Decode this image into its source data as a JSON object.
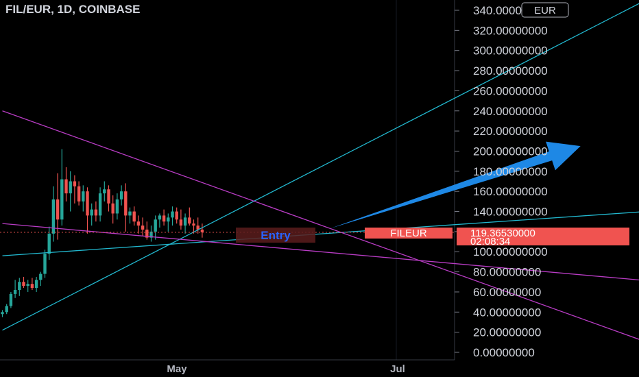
{
  "header": {
    "title": "FIL/EUR, 1D, COINBASE"
  },
  "currency_badge": "EUR",
  "price_label": {
    "symbol": "FILEUR",
    "price": "119.36530000",
    "countdown": "02:08:34"
  },
  "entry_label": "Entry",
  "colors": {
    "background": "#000000",
    "up": "#26a69a",
    "down": "#ef5350",
    "cyan_line": "#22b8cf",
    "magenta_line": "#b83cc4",
    "arrow": "#1e88e5",
    "price_tag": "#f05350"
  },
  "chart_data": {
    "type": "candlestick",
    "title": "FIL/EUR, 1D, COINBASE",
    "y_axis": {
      "min": 0,
      "max": 340,
      "step": 20,
      "ticks": [
        "0.00000000",
        "20.00000000",
        "40.00000000",
        "60.00000000",
        "80.00000000",
        "100.00000000",
        "120.00000000",
        "140.00000000",
        "160.00000000",
        "180.00000000",
        "200.00000000",
        "220.00000000",
        "240.00000000",
        "260.00000000",
        "280.00000000",
        "300.00000000",
        "320.00000000",
        "340.00000000"
      ]
    },
    "x_axis": {
      "ticks": [
        "May",
        "Jul"
      ]
    },
    "last_price": 119.3653,
    "candles": [
      [
        38,
        42,
        35,
        40
      ],
      [
        40,
        48,
        38,
        46
      ],
      [
        46,
        60,
        44,
        58
      ],
      [
        58,
        72,
        54,
        62
      ],
      [
        62,
        74,
        56,
        70
      ],
      [
        70,
        75,
        64,
        66
      ],
      [
        66,
        72,
        60,
        68
      ],
      [
        68,
        74,
        62,
        64
      ],
      [
        64,
        75,
        60,
        72
      ],
      [
        72,
        80,
        66,
        78
      ],
      [
        78,
        102,
        74,
        98
      ],
      [
        98,
        125,
        92,
        118
      ],
      [
        118,
        165,
        110,
        152
      ],
      [
        152,
        178,
        112,
        132
      ],
      [
        132,
        202,
        126,
        172
      ],
      [
        172,
        184,
        150,
        158
      ],
      [
        158,
        180,
        140,
        170
      ],
      [
        170,
        176,
        148,
        165
      ],
      [
        165,
        170,
        146,
        150
      ],
      [
        150,
        166,
        140,
        160
      ],
      [
        160,
        164,
        118,
        136
      ],
      [
        136,
        148,
        126,
        142
      ],
      [
        142,
        150,
        130,
        136
      ],
      [
        136,
        164,
        130,
        158
      ],
      [
        158,
        170,
        150,
        162
      ],
      [
        162,
        166,
        140,
        148
      ],
      [
        148,
        156,
        128,
        138
      ],
      [
        138,
        158,
        132,
        152
      ],
      [
        152,
        166,
        146,
        160
      ],
      [
        160,
        168,
        120,
        136
      ],
      [
        136,
        144,
        128,
        140
      ],
      [
        140,
        145,
        126,
        130
      ],
      [
        130,
        136,
        118,
        126
      ],
      [
        126,
        134,
        116,
        122
      ],
      [
        122,
        130,
        112,
        114
      ],
      [
        114,
        126,
        110,
        120
      ],
      [
        120,
        136,
        112,
        132
      ],
      [
        132,
        138,
        124,
        136
      ],
      [
        136,
        142,
        126,
        130
      ],
      [
        130,
        138,
        120,
        134
      ],
      [
        134,
        145,
        126,
        140
      ],
      [
        140,
        144,
        128,
        132
      ],
      [
        132,
        142,
        122,
        126
      ],
      [
        126,
        138,
        118,
        134
      ],
      [
        134,
        144,
        126,
        128
      ],
      [
        128,
        132,
        118,
        126
      ],
      [
        126,
        134,
        118,
        122
      ],
      [
        122,
        128,
        114,
        119.37
      ]
    ],
    "drawings": [
      {
        "kind": "line",
        "color": "cyan",
        "from": [
          0,
          22
        ],
        "to": [
          155,
          358
        ]
      },
      {
        "kind": "line",
        "color": "cyan",
        "from": [
          0,
          96
        ],
        "to": [
          155,
          141
        ]
      },
      {
        "kind": "line",
        "color": "magenta",
        "from": [
          0,
          240
        ],
        "to": [
          155,
          5
        ]
      },
      {
        "kind": "line",
        "color": "magenta",
        "from": [
          0,
          128
        ],
        "to": [
          155,
          70
        ]
      },
      {
        "kind": "arrow",
        "color": "blue",
        "from": [
          77,
          123
        ],
        "to": [
          136,
          205
        ]
      }
    ]
  }
}
